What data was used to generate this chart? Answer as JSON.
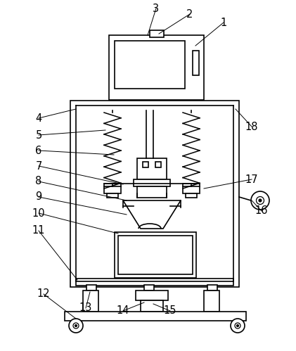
{
  "bg_color": "#ffffff",
  "line_color": "#000000",
  "line_width": 1.2,
  "figsize": [
    4.21,
    4.99
  ],
  "dpi": 100
}
